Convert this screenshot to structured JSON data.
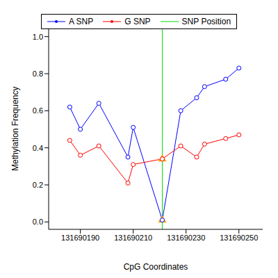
{
  "chart_data": {
    "type": "line",
    "xlabel": "CpG Coordinates",
    "ylabel": "Methylation Frequency",
    "x": [
      131690186,
      131690190,
      131690197,
      131690208,
      131690210,
      131690221,
      131690228,
      131690234,
      131690237,
      131690245,
      131690250
    ],
    "series": [
      {
        "name": "A SNP",
        "color": "#0000ff",
        "marker": "circle",
        "line_style": "solid",
        "values": [
          0.62,
          0.5,
          0.64,
          0.35,
          0.51,
          0.01,
          0.6,
          0.67,
          0.73,
          0.77,
          0.83
        ]
      },
      {
        "name": "G SNP",
        "color": "#ff0000",
        "marker": "circle",
        "line_style": "solid",
        "values": [
          0.44,
          0.36,
          0.41,
          0.21,
          0.31,
          0.34,
          0.41,
          0.35,
          0.42,
          0.45,
          0.47
        ]
      }
    ],
    "snp_position": {
      "name": "SNP Position",
      "color": "#00dd00",
      "x": 131690221
    },
    "snp_markers": {
      "color": "#ffa500",
      "marker": "triangle",
      "values": [
        0.34,
        0.01
      ]
    },
    "xlim": [
      131690178,
      131690259
    ],
    "xticks": [
      131690190,
      131690210,
      131690230,
      131690250
    ],
    "ylim": [
      -0.04,
      1.04
    ],
    "yticks": [
      {
        "value": 0,
        "label": "0.0"
      },
      0.2,
      0.4,
      0.6,
      0.8,
      {
        "value": 1,
        "label": "1.0"
      }
    ],
    "legend": "top"
  }
}
